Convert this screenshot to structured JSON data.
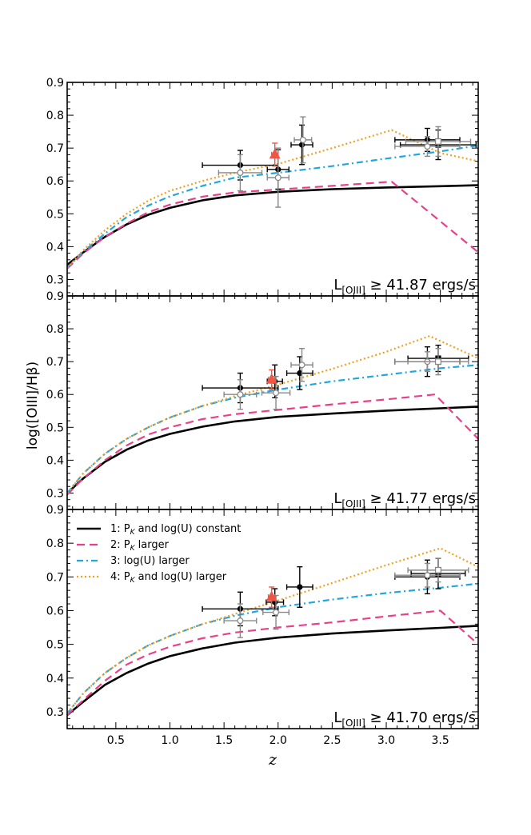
{
  "figure": {
    "xlabel": "z",
    "ylabel": "log([OIII]/Hβ)"
  },
  "chart_data": [
    {
      "type": "line",
      "panel_label": "L[OIII] ≥ 41.87 ergs/s",
      "label_main": "L",
      "label_sub": "[OIII]",
      "label_rest": " ≥ 41.87 ergs/s",
      "xlim": [
        0.05,
        3.85
      ],
      "ylim": [
        0.25,
        0.9
      ],
      "xticks": [
        0.5,
        1.0,
        1.5,
        2.0,
        2.5,
        3.0,
        3.5
      ],
      "xtick_labels": [
        "0.5",
        "1.0",
        "1.5",
        "2.0",
        "2.5",
        "3.0",
        "3.5"
      ],
      "yticks": [
        0.3,
        0.4,
        0.5,
        0.6,
        0.7,
        0.8,
        0.9
      ],
      "ytick_labels": [
        "0.3",
        "0.4",
        "0.5",
        "0.6",
        "0.7",
        "0.8",
        "0.9"
      ],
      "show_xtick_labels": false,
      "show_legend": false,
      "series": [
        {
          "name": "1: P_K and log(U) constant",
          "style": "solid",
          "color": "#000000",
          "x": [
            0.05,
            0.2,
            0.4,
            0.6,
            0.8,
            1.0,
            1.3,
            1.6,
            2.0,
            2.5,
            3.0,
            3.5,
            3.85
          ],
          "y": [
            0.345,
            0.383,
            0.43,
            0.468,
            0.497,
            0.518,
            0.541,
            0.556,
            0.567,
            0.575,
            0.58,
            0.584,
            0.587
          ]
        },
        {
          "name": "2: P_K larger",
          "style": "dashed",
          "color": "#e8408a",
          "x": [
            0.05,
            0.2,
            0.4,
            0.6,
            0.8,
            1.0,
            1.3,
            1.6,
            2.0,
            2.5,
            3.05,
            3.85
          ],
          "y": [
            0.333,
            0.38,
            0.43,
            0.47,
            0.505,
            0.528,
            0.552,
            0.565,
            0.574,
            0.585,
            0.598,
            0.383
          ]
        },
        {
          "name": "3: log(U) larger",
          "style": "dashdot",
          "color": "#1fa8e0",
          "x": [
            0.05,
            0.2,
            0.4,
            0.6,
            0.8,
            1.0,
            1.3,
            1.6,
            2.0,
            2.5,
            3.0,
            3.5,
            3.85
          ],
          "y": [
            0.335,
            0.385,
            0.44,
            0.49,
            0.525,
            0.553,
            0.585,
            0.61,
            0.625,
            0.645,
            0.668,
            0.69,
            0.708
          ]
        },
        {
          "name": "4: P_K and log(U) larger",
          "style": "dotted",
          "color": "#f0a020",
          "x": [
            0.05,
            0.2,
            0.4,
            0.6,
            0.8,
            1.0,
            1.3,
            1.6,
            2.0,
            2.5,
            3.05,
            3.5,
            3.85
          ],
          "y": [
            0.335,
            0.39,
            0.45,
            0.5,
            0.54,
            0.57,
            0.6,
            0.625,
            0.652,
            0.7,
            0.755,
            0.685,
            0.66
          ]
        }
      ],
      "points": [
        {
          "x": 1.65,
          "y": 0.648,
          "xerr": 0.35,
          "yerr": 0.045,
          "marker": "circle-filled",
          "color": "#000000"
        },
        {
          "x": 2.0,
          "y": 0.635,
          "xerr": 0.1,
          "yerr": 0.06,
          "marker": "circle-filled",
          "color": "#000000"
        },
        {
          "x": 2.22,
          "y": 0.71,
          "xerr": 0.1,
          "yerr": 0.06,
          "marker": "circle-filled",
          "color": "#000000"
        },
        {
          "x": 3.38,
          "y": 0.725,
          "xerr": 0.3,
          "yerr": 0.035,
          "marker": "circle-filled",
          "color": "#000000"
        },
        {
          "x": 3.48,
          "y": 0.71,
          "xerr": 0.35,
          "yerr": 0.045,
          "marker": "square-filled",
          "color": "#000000"
        },
        {
          "x": 1.65,
          "y": 0.625,
          "xerr": 0.2,
          "yerr": 0.055,
          "marker": "circle-open",
          "color": "#888888"
        },
        {
          "x": 2.0,
          "y": 0.61,
          "xerr": 0.1,
          "yerr": 0.09,
          "marker": "circle-open",
          "color": "#888888"
        },
        {
          "x": 2.23,
          "y": 0.725,
          "xerr": 0.08,
          "yerr": 0.07,
          "marker": "circle-open",
          "color": "#888888"
        },
        {
          "x": 3.38,
          "y": 0.705,
          "xerr": 0.3,
          "yerr": 0.03,
          "marker": "circle-open",
          "color": "#888888"
        },
        {
          "x": 3.48,
          "y": 0.72,
          "xerr": 0.3,
          "yerr": 0.045,
          "marker": "square-open",
          "color": "#888888"
        },
        {
          "x": 1.97,
          "y": 0.68,
          "xerr": 0.03,
          "yerr": 0.035,
          "marker": "triangle",
          "color": "#f05545"
        }
      ]
    },
    {
      "type": "line",
      "panel_label": "L[OIII] ≥ 41.77 ergs/s",
      "label_main": "L",
      "label_sub": "[OIII]",
      "label_rest": " ≥ 41.77 ergs/s",
      "xlim": [
        0.05,
        3.85
      ],
      "ylim": [
        0.25,
        0.9
      ],
      "xticks": [
        0.5,
        1.0,
        1.5,
        2.0,
        2.5,
        3.0,
        3.5
      ],
      "xtick_labels": [
        "0.5",
        "1.0",
        "1.5",
        "2.0",
        "2.5",
        "3.0",
        "3.5"
      ],
      "yticks": [
        0.3,
        0.4,
        0.5,
        0.6,
        0.7,
        0.8,
        0.9
      ],
      "ytick_labels": [
        "0.3",
        "0.4",
        "0.5",
        "0.6",
        "0.7",
        "0.8",
        "0.9"
      ],
      "show_xtick_labels": false,
      "show_legend": false,
      "series": [
        {
          "name": "1: P_K and log(U) constant",
          "style": "solid",
          "color": "#000000",
          "x": [
            0.05,
            0.2,
            0.4,
            0.6,
            0.8,
            1.0,
            1.3,
            1.6,
            2.0,
            2.5,
            3.0,
            3.5,
            3.85
          ],
          "y": [
            0.3,
            0.345,
            0.395,
            0.432,
            0.46,
            0.48,
            0.502,
            0.518,
            0.532,
            0.542,
            0.551,
            0.558,
            0.563
          ]
        },
        {
          "name": "2: P_K larger",
          "style": "dashed",
          "color": "#e8408a",
          "x": [
            0.05,
            0.2,
            0.4,
            0.6,
            0.8,
            1.0,
            1.3,
            1.6,
            2.0,
            2.5,
            3.0,
            3.45,
            3.85
          ],
          "y": [
            0.295,
            0.345,
            0.4,
            0.445,
            0.478,
            0.5,
            0.525,
            0.54,
            0.553,
            0.57,
            0.585,
            0.6,
            0.465
          ]
        },
        {
          "name": "3: log(U) larger",
          "style": "dashdot",
          "color": "#1fa8e0",
          "x": [
            0.05,
            0.2,
            0.4,
            0.6,
            0.8,
            1.0,
            1.3,
            1.6,
            2.0,
            2.5,
            3.0,
            3.5,
            3.85
          ],
          "y": [
            0.3,
            0.36,
            0.42,
            0.465,
            0.5,
            0.53,
            0.565,
            0.59,
            0.615,
            0.64,
            0.66,
            0.68,
            0.69
          ]
        },
        {
          "name": "4: P_K and log(U) larger",
          "style": "dotted",
          "color": "#f0a020",
          "x": [
            0.05,
            0.2,
            0.4,
            0.6,
            0.8,
            1.0,
            1.3,
            1.6,
            2.0,
            2.5,
            3.0,
            3.4,
            3.85
          ],
          "y": [
            0.3,
            0.36,
            0.42,
            0.465,
            0.5,
            0.53,
            0.565,
            0.595,
            0.63,
            0.678,
            0.73,
            0.778,
            0.71
          ]
        }
      ],
      "points": [
        {
          "x": 1.65,
          "y": 0.62,
          "xerr": 0.35,
          "yerr": 0.045,
          "marker": "circle-filled",
          "color": "#000000"
        },
        {
          "x": 1.97,
          "y": 0.64,
          "xerr": 0.07,
          "yerr": 0.05,
          "marker": "circle-filled",
          "color": "#000000"
        },
        {
          "x": 2.2,
          "y": 0.665,
          "xerr": 0.12,
          "yerr": 0.05,
          "marker": "circle-filled",
          "color": "#000000"
        },
        {
          "x": 3.38,
          "y": 0.7,
          "xerr": 0.3,
          "yerr": 0.045,
          "marker": "circle-filled",
          "color": "#000000"
        },
        {
          "x": 3.48,
          "y": 0.71,
          "xerr": 0.28,
          "yerr": 0.04,
          "marker": "square-filled",
          "color": "#000000"
        },
        {
          "x": 1.65,
          "y": 0.6,
          "xerr": 0.15,
          "yerr": 0.045,
          "marker": "circle-open",
          "color": "#888888"
        },
        {
          "x": 1.98,
          "y": 0.605,
          "xerr": 0.13,
          "yerr": 0.05,
          "marker": "circle-open",
          "color": "#888888"
        },
        {
          "x": 2.22,
          "y": 0.69,
          "xerr": 0.1,
          "yerr": 0.05,
          "marker": "circle-open",
          "color": "#888888"
        },
        {
          "x": 3.38,
          "y": 0.7,
          "xerr": 0.3,
          "yerr": 0.03,
          "marker": "circle-open",
          "color": "#888888"
        },
        {
          "x": 3.48,
          "y": 0.7,
          "xerr": 0.28,
          "yerr": 0.04,
          "marker": "square-open",
          "color": "#888888"
        },
        {
          "x": 1.94,
          "y": 0.645,
          "xerr": 0.03,
          "yerr": 0.03,
          "marker": "triangle",
          "color": "#f05545"
        }
      ]
    },
    {
      "type": "line",
      "panel_label": "L[OIII] ≥ 41.70 ergs/s",
      "label_main": "L",
      "label_sub": "[OIII]",
      "label_rest": " ≥ 41.70 ergs/s",
      "xlim": [
        0.05,
        3.85
      ],
      "ylim": [
        0.25,
        0.9
      ],
      "xticks": [
        0.5,
        1.0,
        1.5,
        2.0,
        2.5,
        3.0,
        3.5
      ],
      "xtick_labels": [
        "0.5",
        "1.0",
        "1.5",
        "2.0",
        "2.5",
        "3.0",
        "3.5"
      ],
      "yticks": [
        0.3,
        0.4,
        0.5,
        0.6,
        0.7,
        0.8,
        0.9
      ],
      "ytick_labels": [
        "0.3",
        "0.4",
        "0.5",
        "0.6",
        "0.7",
        "0.8",
        "0.9"
      ],
      "show_xtick_labels": true,
      "show_legend": true,
      "legend_placement": "top-left",
      "legend": {
        "entries": [
          {
            "prefix": "1: P",
            "sub": "K",
            "suffix": " and log(U) constant"
          },
          {
            "prefix": "2: P",
            "sub": "K",
            "suffix": " larger"
          },
          {
            "prefix": "3: log(U) larger",
            "sub": "",
            "suffix": ""
          },
          {
            "prefix": "4: P",
            "sub": "K",
            "suffix": " and log(U) larger"
          }
        ]
      },
      "series": [
        {
          "name": "1: P_K and log(U) constant",
          "style": "solid",
          "color": "#000000",
          "x": [
            0.05,
            0.2,
            0.4,
            0.6,
            0.8,
            1.0,
            1.3,
            1.6,
            2.0,
            2.5,
            3.0,
            3.5,
            3.85
          ],
          "y": [
            0.29,
            0.33,
            0.38,
            0.415,
            0.443,
            0.465,
            0.488,
            0.505,
            0.52,
            0.532,
            0.541,
            0.549,
            0.555
          ]
        },
        {
          "name": "2: P_K larger",
          "style": "dashed",
          "color": "#e8408a",
          "x": [
            0.05,
            0.2,
            0.4,
            0.6,
            0.8,
            1.0,
            1.3,
            1.6,
            2.0,
            2.5,
            3.0,
            3.5,
            3.85
          ],
          "y": [
            0.29,
            0.335,
            0.392,
            0.44,
            0.47,
            0.493,
            0.518,
            0.535,
            0.55,
            0.565,
            0.583,
            0.6,
            0.5
          ]
        },
        {
          "name": "3: log(U) larger",
          "style": "dashdot",
          "color": "#1fa8e0",
          "x": [
            0.05,
            0.2,
            0.4,
            0.6,
            0.8,
            1.0,
            1.3,
            1.6,
            2.0,
            2.5,
            3.0,
            3.5,
            3.85
          ],
          "y": [
            0.295,
            0.355,
            0.415,
            0.46,
            0.497,
            0.525,
            0.56,
            0.585,
            0.61,
            0.633,
            0.652,
            0.668,
            0.68
          ]
        },
        {
          "name": "4: P_K and log(U) larger",
          "style": "dotted",
          "color": "#f0a020",
          "x": [
            0.05,
            0.2,
            0.4,
            0.6,
            0.8,
            1.0,
            1.3,
            1.6,
            2.0,
            2.5,
            3.0,
            3.5,
            3.85
          ],
          "y": [
            0.295,
            0.355,
            0.415,
            0.46,
            0.497,
            0.525,
            0.56,
            0.59,
            0.63,
            0.682,
            0.735,
            0.785,
            0.73
          ]
        }
      ],
      "points": [
        {
          "x": 1.65,
          "y": 0.605,
          "xerr": 0.35,
          "yerr": 0.05,
          "marker": "circle-filled",
          "color": "#000000"
        },
        {
          "x": 1.97,
          "y": 0.625,
          "xerr": 0.08,
          "yerr": 0.04,
          "marker": "circle-filled",
          "color": "#000000"
        },
        {
          "x": 2.2,
          "y": 0.67,
          "xerr": 0.12,
          "yerr": 0.06,
          "marker": "circle-filled",
          "color": "#000000"
        },
        {
          "x": 3.38,
          "y": 0.7,
          "xerr": 0.3,
          "yerr": 0.05,
          "marker": "circle-filled",
          "color": "#000000"
        },
        {
          "x": 3.48,
          "y": 0.71,
          "xerr": 0.25,
          "yerr": 0.045,
          "marker": "square-filled",
          "color": "#000000"
        },
        {
          "x": 1.65,
          "y": 0.57,
          "xerr": 0.15,
          "yerr": 0.05,
          "marker": "circle-open",
          "color": "#888888"
        },
        {
          "x": 1.98,
          "y": 0.595,
          "xerr": 0.12,
          "yerr": 0.05,
          "marker": "circle-open",
          "color": "#888888"
        },
        {
          "x": 3.38,
          "y": 0.705,
          "xerr": 0.3,
          "yerr": 0.035,
          "marker": "circle-open",
          "color": "#888888"
        },
        {
          "x": 3.48,
          "y": 0.72,
          "xerr": 0.28,
          "yerr": 0.035,
          "marker": "square-open",
          "color": "#888888"
        },
        {
          "x": 1.94,
          "y": 0.64,
          "xerr": 0.03,
          "yerr": 0.03,
          "marker": "triangle",
          "color": "#f05545"
        }
      ]
    }
  ]
}
